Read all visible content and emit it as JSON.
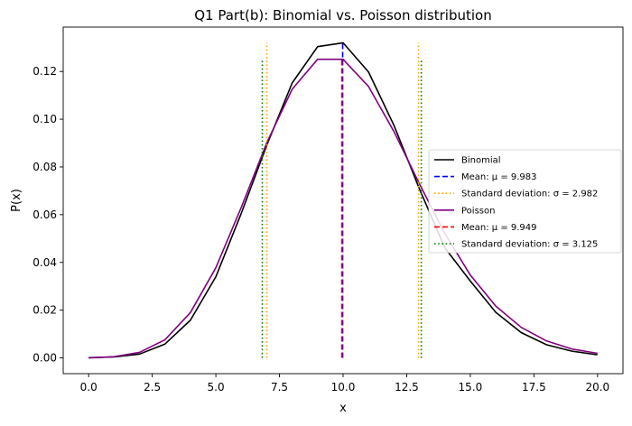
{
  "chart_data": {
    "type": "line",
    "title": "Q1 Part(b): Binomial vs. Poisson distribution",
    "xlabel": "x",
    "ylabel": "P(x)",
    "xlim": [
      -1.0,
      21.0
    ],
    "ylim": [
      -0.0066,
      0.1386
    ],
    "xticks": [
      0.0,
      2.5,
      5.0,
      7.5,
      10.0,
      12.5,
      15.0,
      17.5,
      20.0
    ],
    "xtick_labels": [
      "0.0",
      "2.5",
      "5.0",
      "7.5",
      "10.0",
      "12.5",
      "15.0",
      "17.5",
      "20.0"
    ],
    "yticks": [
      0.0,
      0.02,
      0.04,
      0.06,
      0.08,
      0.1,
      0.12
    ],
    "ytick_labels": [
      "0.00",
      "0.02",
      "0.04",
      "0.06",
      "0.08",
      "0.10",
      "0.12"
    ],
    "grid": false,
    "legend_position": "center-right",
    "x": [
      0,
      1,
      2,
      3,
      4,
      5,
      6,
      7,
      8,
      9,
      10,
      11,
      12,
      13,
      14,
      15,
      16,
      17,
      18,
      19,
      20
    ],
    "series": [
      {
        "name": "Binomial",
        "color": "#000000",
        "style": "solid",
        "values": [
          0.0001,
          0.0004,
          0.0016,
          0.0058,
          0.0158,
          0.034,
          0.0606,
          0.0891,
          0.1152,
          0.1304,
          0.132,
          0.1198,
          0.0974,
          0.0708,
          0.0461,
          0.0322,
          0.0191,
          0.0106,
          0.0055,
          0.0028,
          0.0013
        ]
      },
      {
        "name": "Poisson",
        "color": "#800080",
        "style": "solid",
        "values": [
          0.0,
          0.0005,
          0.0023,
          0.0076,
          0.019,
          0.0378,
          0.0631,
          0.0901,
          0.1126,
          0.1251,
          0.1251,
          0.1137,
          0.0948,
          0.0729,
          0.0521,
          0.0347,
          0.0217,
          0.0128,
          0.0071,
          0.0037,
          0.0019
        ]
      }
    ],
    "vlines": [
      {
        "name": "Mean: $\\mu$ = 9.983",
        "x": 9.983,
        "y_top": 0.132,
        "color": "#0000ff",
        "style": "dashed"
      },
      {
        "name": "Standard deviation: $\\sigma$ = 2.982",
        "x": 7.001,
        "y_top": 0.132,
        "color": "#ffa500",
        "style": "dotted"
      },
      {
        "name": "",
        "x": 12.965,
        "y_top": 0.132,
        "color": "#ffa500",
        "style": "dotted"
      },
      {
        "name": "Mean: $\\mu$ = 9.949",
        "x": 9.949,
        "y_top": 0.1251,
        "color": "#ff0000",
        "style": "dashed"
      },
      {
        "name": "Standard deviation: $\\sigma$ = 3.125",
        "x": 6.824,
        "y_top": 0.1251,
        "color": "#008000",
        "style": "dotted"
      },
      {
        "name": "",
        "x": 13.074,
        "y_top": 0.1251,
        "color": "#008000",
        "style": "dotted"
      }
    ],
    "legend": [
      {
        "label": "Binomial",
        "color": "#000000",
        "style": "solid"
      },
      {
        "label": "Mean: μ = 9.983",
        "color": "#0000ff",
        "style": "dashed"
      },
      {
        "label": "Standard deviation: σ = 2.982",
        "color": "#ffa500",
        "style": "dotted"
      },
      {
        "label": "Poisson",
        "color": "#800080",
        "style": "solid"
      },
      {
        "label": "Mean: μ = 9.949",
        "color": "#ff0000",
        "style": "dashed"
      },
      {
        "label": "Standard deviation: σ = 3.125",
        "color": "#008000",
        "style": "dotted"
      }
    ]
  }
}
